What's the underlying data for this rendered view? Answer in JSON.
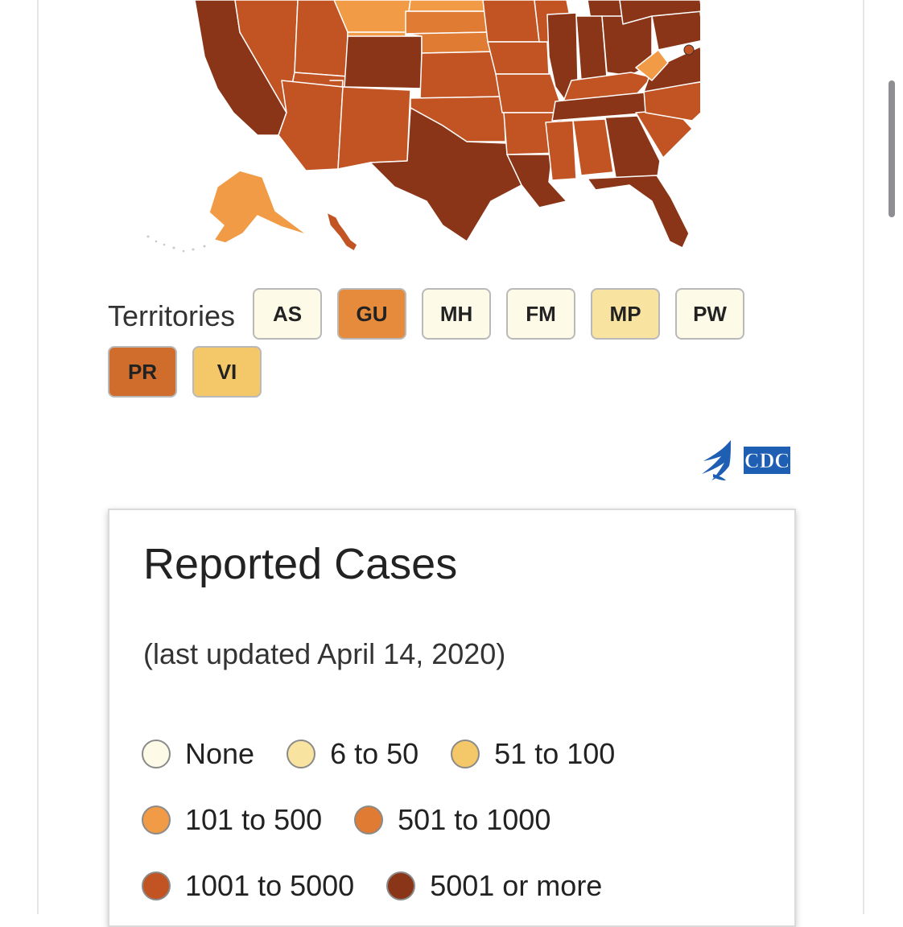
{
  "territories": {
    "label": "Territories",
    "items": [
      {
        "code": "AS",
        "color": "#fdfbe8"
      },
      {
        "code": "GU",
        "color": "#e68a3c"
      },
      {
        "code": "MH",
        "color": "#fdfbe8"
      },
      {
        "code": "FM",
        "color": "#fdfbe8"
      },
      {
        "code": "MP",
        "color": "#f9e3a0"
      },
      {
        "code": "PW",
        "color": "#fdfbe8"
      },
      {
        "code": "PR",
        "color": "#d06c2c"
      },
      {
        "code": "VI",
        "color": "#f4c768"
      }
    ]
  },
  "legend": {
    "title": "Reported Cases",
    "updated": "(last updated April 14, 2020)",
    "rows": [
      [
        {
          "label": "None",
          "color": "#fdfbe8"
        },
        {
          "label": "6 to 50",
          "color": "#f9e3a0"
        },
        {
          "label": "51 to 100",
          "color": "#f4c768"
        }
      ],
      [
        {
          "label": "101 to 500",
          "color": "#f19b46"
        },
        {
          "label": "501 to 1000",
          "color": "#e07b33"
        }
      ],
      [
        {
          "label": "1001 to 5000",
          "color": "#c25424"
        },
        {
          "label": "5001 or more",
          "color": "#8a3518"
        }
      ]
    ]
  },
  "map": {
    "colors": {
      "c5000": "#8a3518",
      "c1000": "#c25424",
      "c501": "#e07b33",
      "c101": "#f19b46",
      "c51": "#f4c768"
    }
  },
  "cdc_logo": {
    "text": "CDC",
    "icon": "hhs-eagle-icon",
    "color": "#1e5fb4"
  }
}
